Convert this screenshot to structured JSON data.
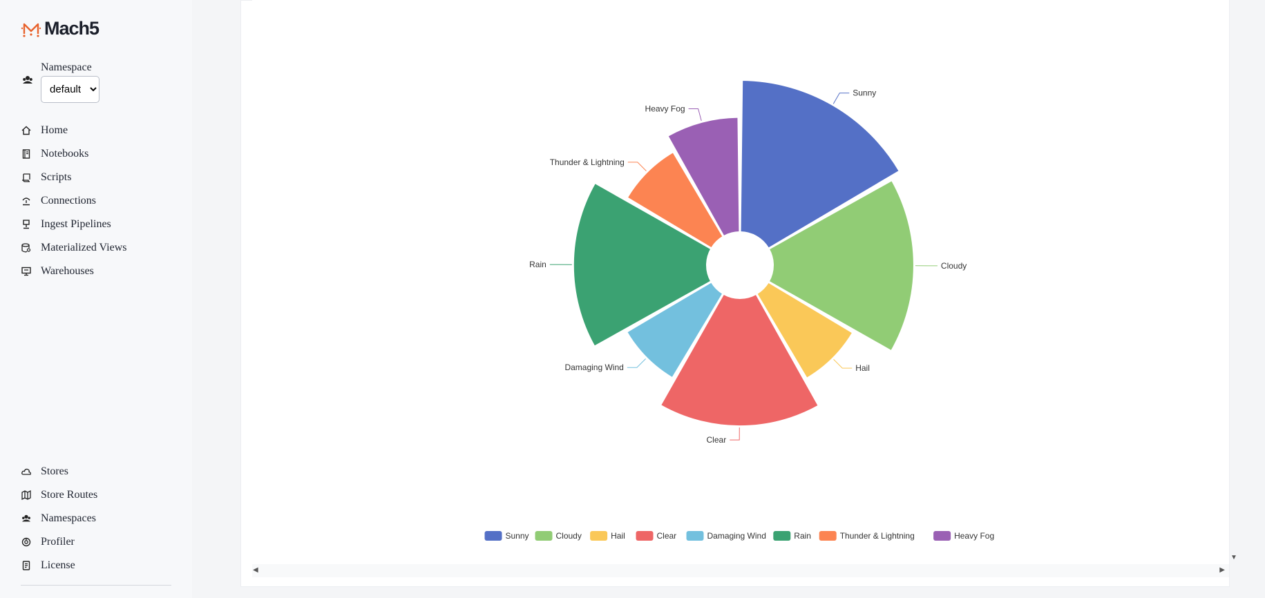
{
  "app": {
    "logo_text": "Mach5",
    "brand_color": "#e8622c"
  },
  "sidebar": {
    "namespace_label": "Namespace",
    "namespace_value": "default",
    "namespace_options": [
      "default"
    ],
    "top_items": [
      {
        "label": "Home",
        "icon": "home-icon"
      },
      {
        "label": "Notebooks",
        "icon": "notebook-icon"
      },
      {
        "label": "Scripts",
        "icon": "script-icon"
      },
      {
        "label": "Connections",
        "icon": "connection-icon"
      },
      {
        "label": "Ingest Pipelines",
        "icon": "pipeline-icon"
      },
      {
        "label": "Materialized Views",
        "icon": "database-search-icon"
      },
      {
        "label": "Warehouses",
        "icon": "warehouse-icon"
      }
    ],
    "bottom_items": [
      {
        "label": "Stores",
        "icon": "cloud-icon"
      },
      {
        "label": "Store Routes",
        "icon": "map-icon"
      },
      {
        "label": "Namespaces",
        "icon": "users-icon"
      },
      {
        "label": "Profiler",
        "icon": "profiler-icon"
      },
      {
        "label": "License",
        "icon": "license-icon"
      }
    ]
  },
  "chart_data": {
    "type": "pie",
    "variant": "rose (nightingale) with inner hole",
    "categories": [
      "Sunny",
      "Cloudy",
      "Hail",
      "Clear",
      "Damaging Wind",
      "Rain",
      "Thunder & Lightning",
      "Heavy Fog"
    ],
    "values": [
      16.7,
      16.7,
      8.3,
      16.7,
      8.3,
      16.7,
      8.3,
      8.3
    ],
    "radius_scale": [
      1.0,
      0.94,
      0.71,
      0.87,
      0.71,
      0.9,
      0.71,
      0.8
    ],
    "colors": [
      "#5470c6",
      "#91cc75",
      "#fac858",
      "#ee6666",
      "#73c0de",
      "#3ba272",
      "#fc8452",
      "#9a60b4"
    ],
    "legend_position": "bottom"
  }
}
